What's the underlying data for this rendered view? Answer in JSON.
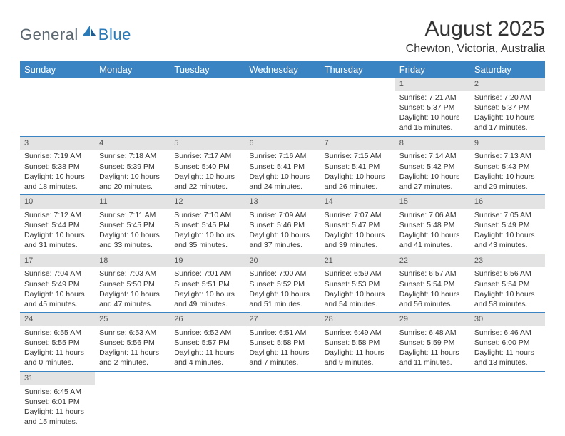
{
  "logo": {
    "text1": "General",
    "text2": "Blue"
  },
  "title": "August 2025",
  "location": "Chewton, Victoria, Australia",
  "colors": {
    "header_bg": "#3b84c4",
    "header_fg": "#ffffff",
    "daynum_bg": "#e3e3e3",
    "rule": "#3b84c4",
    "logo_gray": "#5a6670",
    "logo_blue": "#2a7ab8"
  },
  "weekdays": [
    "Sunday",
    "Monday",
    "Tuesday",
    "Wednesday",
    "Thursday",
    "Friday",
    "Saturday"
  ],
  "weeks": [
    [
      {
        "empty": true
      },
      {
        "empty": true
      },
      {
        "empty": true
      },
      {
        "empty": true
      },
      {
        "empty": true
      },
      {
        "day": "1",
        "sunrise": "Sunrise: 7:21 AM",
        "sunset": "Sunset: 5:37 PM",
        "dl1": "Daylight: 10 hours",
        "dl2": "and 15 minutes."
      },
      {
        "day": "2",
        "sunrise": "Sunrise: 7:20 AM",
        "sunset": "Sunset: 5:37 PM",
        "dl1": "Daylight: 10 hours",
        "dl2": "and 17 minutes."
      }
    ],
    [
      {
        "day": "3",
        "sunrise": "Sunrise: 7:19 AM",
        "sunset": "Sunset: 5:38 PM",
        "dl1": "Daylight: 10 hours",
        "dl2": "and 18 minutes."
      },
      {
        "day": "4",
        "sunrise": "Sunrise: 7:18 AM",
        "sunset": "Sunset: 5:39 PM",
        "dl1": "Daylight: 10 hours",
        "dl2": "and 20 minutes."
      },
      {
        "day": "5",
        "sunrise": "Sunrise: 7:17 AM",
        "sunset": "Sunset: 5:40 PM",
        "dl1": "Daylight: 10 hours",
        "dl2": "and 22 minutes."
      },
      {
        "day": "6",
        "sunrise": "Sunrise: 7:16 AM",
        "sunset": "Sunset: 5:41 PM",
        "dl1": "Daylight: 10 hours",
        "dl2": "and 24 minutes."
      },
      {
        "day": "7",
        "sunrise": "Sunrise: 7:15 AM",
        "sunset": "Sunset: 5:41 PM",
        "dl1": "Daylight: 10 hours",
        "dl2": "and 26 minutes."
      },
      {
        "day": "8",
        "sunrise": "Sunrise: 7:14 AM",
        "sunset": "Sunset: 5:42 PM",
        "dl1": "Daylight: 10 hours",
        "dl2": "and 27 minutes."
      },
      {
        "day": "9",
        "sunrise": "Sunrise: 7:13 AM",
        "sunset": "Sunset: 5:43 PM",
        "dl1": "Daylight: 10 hours",
        "dl2": "and 29 minutes."
      }
    ],
    [
      {
        "day": "10",
        "sunrise": "Sunrise: 7:12 AM",
        "sunset": "Sunset: 5:44 PM",
        "dl1": "Daylight: 10 hours",
        "dl2": "and 31 minutes."
      },
      {
        "day": "11",
        "sunrise": "Sunrise: 7:11 AM",
        "sunset": "Sunset: 5:45 PM",
        "dl1": "Daylight: 10 hours",
        "dl2": "and 33 minutes."
      },
      {
        "day": "12",
        "sunrise": "Sunrise: 7:10 AM",
        "sunset": "Sunset: 5:45 PM",
        "dl1": "Daylight: 10 hours",
        "dl2": "and 35 minutes."
      },
      {
        "day": "13",
        "sunrise": "Sunrise: 7:09 AM",
        "sunset": "Sunset: 5:46 PM",
        "dl1": "Daylight: 10 hours",
        "dl2": "and 37 minutes."
      },
      {
        "day": "14",
        "sunrise": "Sunrise: 7:07 AM",
        "sunset": "Sunset: 5:47 PM",
        "dl1": "Daylight: 10 hours",
        "dl2": "and 39 minutes."
      },
      {
        "day": "15",
        "sunrise": "Sunrise: 7:06 AM",
        "sunset": "Sunset: 5:48 PM",
        "dl1": "Daylight: 10 hours",
        "dl2": "and 41 minutes."
      },
      {
        "day": "16",
        "sunrise": "Sunrise: 7:05 AM",
        "sunset": "Sunset: 5:49 PM",
        "dl1": "Daylight: 10 hours",
        "dl2": "and 43 minutes."
      }
    ],
    [
      {
        "day": "17",
        "sunrise": "Sunrise: 7:04 AM",
        "sunset": "Sunset: 5:49 PM",
        "dl1": "Daylight: 10 hours",
        "dl2": "and 45 minutes."
      },
      {
        "day": "18",
        "sunrise": "Sunrise: 7:03 AM",
        "sunset": "Sunset: 5:50 PM",
        "dl1": "Daylight: 10 hours",
        "dl2": "and 47 minutes."
      },
      {
        "day": "19",
        "sunrise": "Sunrise: 7:01 AM",
        "sunset": "Sunset: 5:51 PM",
        "dl1": "Daylight: 10 hours",
        "dl2": "and 49 minutes."
      },
      {
        "day": "20",
        "sunrise": "Sunrise: 7:00 AM",
        "sunset": "Sunset: 5:52 PM",
        "dl1": "Daylight: 10 hours",
        "dl2": "and 51 minutes."
      },
      {
        "day": "21",
        "sunrise": "Sunrise: 6:59 AM",
        "sunset": "Sunset: 5:53 PM",
        "dl1": "Daylight: 10 hours",
        "dl2": "and 54 minutes."
      },
      {
        "day": "22",
        "sunrise": "Sunrise: 6:57 AM",
        "sunset": "Sunset: 5:54 PM",
        "dl1": "Daylight: 10 hours",
        "dl2": "and 56 minutes."
      },
      {
        "day": "23",
        "sunrise": "Sunrise: 6:56 AM",
        "sunset": "Sunset: 5:54 PM",
        "dl1": "Daylight: 10 hours",
        "dl2": "and 58 minutes."
      }
    ],
    [
      {
        "day": "24",
        "sunrise": "Sunrise: 6:55 AM",
        "sunset": "Sunset: 5:55 PM",
        "dl1": "Daylight: 11 hours",
        "dl2": "and 0 minutes."
      },
      {
        "day": "25",
        "sunrise": "Sunrise: 6:53 AM",
        "sunset": "Sunset: 5:56 PM",
        "dl1": "Daylight: 11 hours",
        "dl2": "and 2 minutes."
      },
      {
        "day": "26",
        "sunrise": "Sunrise: 6:52 AM",
        "sunset": "Sunset: 5:57 PM",
        "dl1": "Daylight: 11 hours",
        "dl2": "and 4 minutes."
      },
      {
        "day": "27",
        "sunrise": "Sunrise: 6:51 AM",
        "sunset": "Sunset: 5:58 PM",
        "dl1": "Daylight: 11 hours",
        "dl2": "and 7 minutes."
      },
      {
        "day": "28",
        "sunrise": "Sunrise: 6:49 AM",
        "sunset": "Sunset: 5:58 PM",
        "dl1": "Daylight: 11 hours",
        "dl2": "and 9 minutes."
      },
      {
        "day": "29",
        "sunrise": "Sunrise: 6:48 AM",
        "sunset": "Sunset: 5:59 PM",
        "dl1": "Daylight: 11 hours",
        "dl2": "and 11 minutes."
      },
      {
        "day": "30",
        "sunrise": "Sunrise: 6:46 AM",
        "sunset": "Sunset: 6:00 PM",
        "dl1": "Daylight: 11 hours",
        "dl2": "and 13 minutes."
      }
    ],
    [
      {
        "day": "31",
        "sunrise": "Sunrise: 6:45 AM",
        "sunset": "Sunset: 6:01 PM",
        "dl1": "Daylight: 11 hours",
        "dl2": "and 15 minutes."
      },
      {
        "empty": true
      },
      {
        "empty": true
      },
      {
        "empty": true
      },
      {
        "empty": true
      },
      {
        "empty": true
      },
      {
        "empty": true
      }
    ]
  ]
}
